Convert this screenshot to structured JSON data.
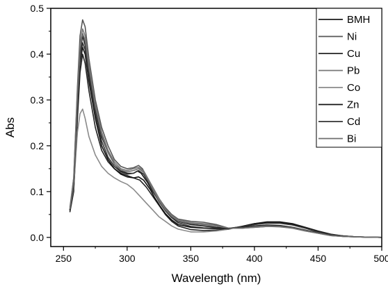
{
  "chart_data": {
    "type": "line",
    "xlabel": "Wavelength (nm)",
    "ylabel": "Abs",
    "xlim": [
      240,
      500
    ],
    "ylim": [
      -0.02,
      0.5
    ],
    "xticks": [
      250,
      300,
      350,
      400,
      450,
      500
    ],
    "yticks": [
      0.0,
      0.1,
      0.2,
      0.3,
      0.4,
      0.5
    ],
    "xtick_labels": [
      "250",
      "300",
      "350",
      "400",
      "450",
      "500"
    ],
    "ytick_labels": [
      "0.0",
      "0.1",
      "0.2",
      "0.3",
      "0.4",
      "0.5"
    ],
    "grid": false,
    "legend_position": "top-right",
    "series": [
      {
        "name": "BMH",
        "color": "#1a1a1a",
        "points": [
          [
            255,
            0.06
          ],
          [
            258,
            0.12
          ],
          [
            261,
            0.3
          ],
          [
            263,
            0.4
          ],
          [
            265,
            0.44
          ],
          [
            267,
            0.42
          ],
          [
            270,
            0.36
          ],
          [
            275,
            0.28
          ],
          [
            280,
            0.22
          ],
          [
            285,
            0.185
          ],
          [
            290,
            0.16
          ],
          [
            295,
            0.145
          ],
          [
            300,
            0.14
          ],
          [
            305,
            0.14
          ],
          [
            308,
            0.145
          ],
          [
            311,
            0.14
          ],
          [
            316,
            0.12
          ],
          [
            320,
            0.1
          ],
          [
            325,
            0.08
          ],
          [
            330,
            0.06
          ],
          [
            335,
            0.045
          ],
          [
            340,
            0.035
          ],
          [
            350,
            0.028
          ],
          [
            360,
            0.025
          ],
          [
            370,
            0.022
          ],
          [
            380,
            0.02
          ],
          [
            390,
            0.022
          ],
          [
            400,
            0.025
          ],
          [
            410,
            0.027
          ],
          [
            420,
            0.026
          ],
          [
            430,
            0.022
          ],
          [
            440,
            0.016
          ],
          [
            450,
            0.01
          ],
          [
            460,
            0.005
          ],
          [
            470,
            0.002
          ],
          [
            480,
            0.001
          ],
          [
            500,
            0.0
          ]
        ]
      },
      {
        "name": "Ni",
        "color": "#555555",
        "points": [
          [
            255,
            0.06
          ],
          [
            258,
            0.13
          ],
          [
            261,
            0.33
          ],
          [
            263,
            0.44
          ],
          [
            265,
            0.475
          ],
          [
            267,
            0.46
          ],
          [
            270,
            0.39
          ],
          [
            275,
            0.3
          ],
          [
            280,
            0.24
          ],
          [
            285,
            0.2
          ],
          [
            290,
            0.17
          ],
          [
            295,
            0.155
          ],
          [
            300,
            0.15
          ],
          [
            305,
            0.152
          ],
          [
            309,
            0.157
          ],
          [
            312,
            0.15
          ],
          [
            316,
            0.13
          ],
          [
            320,
            0.11
          ],
          [
            325,
            0.085
          ],
          [
            330,
            0.065
          ],
          [
            335,
            0.05
          ],
          [
            340,
            0.04
          ],
          [
            350,
            0.035
          ],
          [
            360,
            0.033
          ],
          [
            370,
            0.028
          ],
          [
            380,
            0.02
          ],
          [
            390,
            0.02
          ],
          [
            400,
            0.022
          ],
          [
            410,
            0.024
          ],
          [
            420,
            0.023
          ],
          [
            430,
            0.02
          ],
          [
            440,
            0.014
          ],
          [
            450,
            0.009
          ],
          [
            460,
            0.004
          ],
          [
            470,
            0.002
          ],
          [
            480,
            0.001
          ],
          [
            500,
            0.0
          ]
        ]
      },
      {
        "name": "Cu",
        "color": "#222222",
        "points": [
          [
            255,
            0.055
          ],
          [
            258,
            0.1
          ],
          [
            261,
            0.26
          ],
          [
            263,
            0.36
          ],
          [
            265,
            0.4
          ],
          [
            267,
            0.38
          ],
          [
            270,
            0.32
          ],
          [
            275,
            0.24
          ],
          [
            280,
            0.19
          ],
          [
            285,
            0.165
          ],
          [
            290,
            0.15
          ],
          [
            295,
            0.14
          ],
          [
            300,
            0.135
          ],
          [
            305,
            0.13
          ],
          [
            310,
            0.125
          ],
          [
            315,
            0.11
          ],
          [
            320,
            0.09
          ],
          [
            325,
            0.07
          ],
          [
            330,
            0.05
          ],
          [
            335,
            0.035
          ],
          [
            340,
            0.025
          ],
          [
            350,
            0.017
          ],
          [
            360,
            0.015
          ],
          [
            370,
            0.016
          ],
          [
            380,
            0.018
          ],
          [
            390,
            0.024
          ],
          [
            400,
            0.03
          ],
          [
            410,
            0.034
          ],
          [
            420,
            0.034
          ],
          [
            430,
            0.03
          ],
          [
            440,
            0.022
          ],
          [
            450,
            0.014
          ],
          [
            460,
            0.007
          ],
          [
            470,
            0.003
          ],
          [
            480,
            0.001
          ],
          [
            500,
            0.0
          ]
        ]
      },
      {
        "name": "Pb",
        "color": "#777777",
        "points": [
          [
            255,
            0.065
          ],
          [
            258,
            0.13
          ],
          [
            261,
            0.32
          ],
          [
            263,
            0.42
          ],
          [
            265,
            0.455
          ],
          [
            267,
            0.44
          ],
          [
            270,
            0.38
          ],
          [
            275,
            0.29
          ],
          [
            280,
            0.23
          ],
          [
            285,
            0.19
          ],
          [
            290,
            0.165
          ],
          [
            295,
            0.15
          ],
          [
            300,
            0.146
          ],
          [
            305,
            0.15
          ],
          [
            309,
            0.153
          ],
          [
            313,
            0.145
          ],
          [
            317,
            0.125
          ],
          [
            320,
            0.11
          ],
          [
            325,
            0.085
          ],
          [
            330,
            0.062
          ],
          [
            335,
            0.048
          ],
          [
            340,
            0.038
          ],
          [
            350,
            0.032
          ],
          [
            360,
            0.03
          ],
          [
            370,
            0.026
          ],
          [
            380,
            0.02
          ],
          [
            390,
            0.02
          ],
          [
            400,
            0.023
          ],
          [
            410,
            0.025
          ],
          [
            420,
            0.024
          ],
          [
            430,
            0.02
          ],
          [
            440,
            0.014
          ],
          [
            450,
            0.009
          ],
          [
            460,
            0.004
          ],
          [
            470,
            0.002
          ],
          [
            480,
            0.001
          ],
          [
            500,
            0.0
          ]
        ]
      },
      {
        "name": "Co",
        "color": "#8a8a8a",
        "points": [
          [
            255,
            0.06
          ],
          [
            258,
            0.11
          ],
          [
            261,
            0.23
          ],
          [
            263,
            0.27
          ],
          [
            265,
            0.28
          ],
          [
            267,
            0.26
          ],
          [
            270,
            0.22
          ],
          [
            275,
            0.18
          ],
          [
            280,
            0.155
          ],
          [
            285,
            0.14
          ],
          [
            290,
            0.13
          ],
          [
            295,
            0.122
          ],
          [
            300,
            0.116
          ],
          [
            305,
            0.105
          ],
          [
            310,
            0.09
          ],
          [
            315,
            0.075
          ],
          [
            320,
            0.06
          ],
          [
            325,
            0.045
          ],
          [
            330,
            0.035
          ],
          [
            335,
            0.025
          ],
          [
            340,
            0.018
          ],
          [
            350,
            0.012
          ],
          [
            360,
            0.012
          ],
          [
            370,
            0.014
          ],
          [
            380,
            0.018
          ],
          [
            390,
            0.024
          ],
          [
            400,
            0.028
          ],
          [
            410,
            0.031
          ],
          [
            420,
            0.031
          ],
          [
            430,
            0.027
          ],
          [
            440,
            0.02
          ],
          [
            450,
            0.012
          ],
          [
            460,
            0.006
          ],
          [
            470,
            0.003
          ],
          [
            480,
            0.001
          ],
          [
            500,
            0.0
          ]
        ]
      },
      {
        "name": "Zn",
        "color": "#111111",
        "points": [
          [
            255,
            0.06
          ],
          [
            258,
            0.12
          ],
          [
            261,
            0.29
          ],
          [
            263,
            0.38
          ],
          [
            265,
            0.415
          ],
          [
            267,
            0.4
          ],
          [
            270,
            0.34
          ],
          [
            275,
            0.26
          ],
          [
            280,
            0.2
          ],
          [
            285,
            0.17
          ],
          [
            290,
            0.15
          ],
          [
            295,
            0.138
          ],
          [
            300,
            0.132
          ],
          [
            305,
            0.13
          ],
          [
            309,
            0.132
          ],
          [
            313,
            0.125
          ],
          [
            318,
            0.105
          ],
          [
            322,
            0.085
          ],
          [
            326,
            0.068
          ],
          [
            330,
            0.052
          ],
          [
            335,
            0.038
          ],
          [
            340,
            0.028
          ],
          [
            350,
            0.022
          ],
          [
            360,
            0.02
          ],
          [
            370,
            0.019
          ],
          [
            380,
            0.019
          ],
          [
            390,
            0.024
          ],
          [
            400,
            0.03
          ],
          [
            410,
            0.033
          ],
          [
            420,
            0.033
          ],
          [
            430,
            0.029
          ],
          [
            440,
            0.021
          ],
          [
            450,
            0.013
          ],
          [
            460,
            0.006
          ],
          [
            470,
            0.003
          ],
          [
            480,
            0.001
          ],
          [
            500,
            0.0
          ]
        ]
      },
      {
        "name": "Cd",
        "color": "#333333",
        "points": [
          [
            255,
            0.058
          ],
          [
            258,
            0.115
          ],
          [
            261,
            0.285
          ],
          [
            263,
            0.385
          ],
          [
            265,
            0.425
          ],
          [
            267,
            0.41
          ],
          [
            270,
            0.35
          ],
          [
            275,
            0.27
          ],
          [
            280,
            0.21
          ],
          [
            285,
            0.175
          ],
          [
            290,
            0.155
          ],
          [
            295,
            0.143
          ],
          [
            300,
            0.138
          ],
          [
            305,
            0.14
          ],
          [
            309,
            0.146
          ],
          [
            313,
            0.138
          ],
          [
            317,
            0.118
          ],
          [
            321,
            0.098
          ],
          [
            325,
            0.078
          ],
          [
            330,
            0.058
          ],
          [
            335,
            0.043
          ],
          [
            340,
            0.032
          ],
          [
            350,
            0.024
          ],
          [
            360,
            0.021
          ],
          [
            370,
            0.02
          ],
          [
            380,
            0.02
          ],
          [
            390,
            0.023
          ],
          [
            400,
            0.028
          ],
          [
            410,
            0.031
          ],
          [
            420,
            0.031
          ],
          [
            430,
            0.027
          ],
          [
            440,
            0.02
          ],
          [
            450,
            0.012
          ],
          [
            460,
            0.006
          ],
          [
            470,
            0.003
          ],
          [
            480,
            0.001
          ],
          [
            500,
            0.0
          ]
        ]
      },
      {
        "name": "Bi",
        "color": "#6e6e6e",
        "points": [
          [
            255,
            0.062
          ],
          [
            258,
            0.125
          ],
          [
            261,
            0.31
          ],
          [
            263,
            0.41
          ],
          [
            265,
            0.445
          ],
          [
            267,
            0.43
          ],
          [
            270,
            0.37
          ],
          [
            275,
            0.285
          ],
          [
            280,
            0.225
          ],
          [
            285,
            0.185
          ],
          [
            290,
            0.16
          ],
          [
            295,
            0.147
          ],
          [
            300,
            0.143
          ],
          [
            305,
            0.146
          ],
          [
            309,
            0.15
          ],
          [
            313,
            0.142
          ],
          [
            317,
            0.122
          ],
          [
            321,
            0.1
          ],
          [
            325,
            0.08
          ],
          [
            330,
            0.06
          ],
          [
            335,
            0.046
          ],
          [
            340,
            0.036
          ],
          [
            350,
            0.03
          ],
          [
            360,
            0.028
          ],
          [
            370,
            0.025
          ],
          [
            380,
            0.02
          ],
          [
            390,
            0.02
          ],
          [
            400,
            0.022
          ],
          [
            410,
            0.024
          ],
          [
            420,
            0.024
          ],
          [
            430,
            0.021
          ],
          [
            440,
            0.015
          ],
          [
            450,
            0.009
          ],
          [
            460,
            0.004
          ],
          [
            470,
            0.002
          ],
          [
            480,
            0.001
          ],
          [
            500,
            0.0
          ]
        ]
      }
    ]
  }
}
